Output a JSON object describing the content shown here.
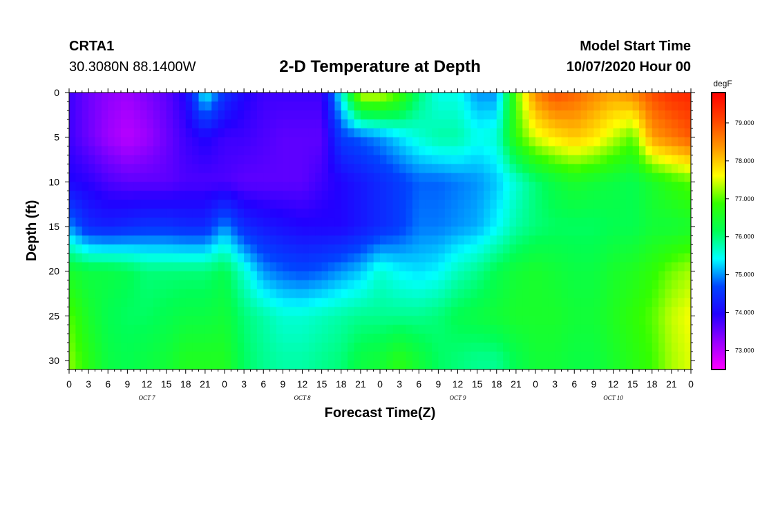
{
  "header": {
    "station": "CRTA1",
    "coords": "30.3080N 88.1400W",
    "title": "2-D Temperature at Depth",
    "start_label": "Model Start Time",
    "start_value": "10/07/2020 Hour 00"
  },
  "colors": {
    "palette": [
      "#ff00ff",
      "#9900ff",
      "#2200ff",
      "#0044ff",
      "#00ffff",
      "#00ff55",
      "#33ff00",
      "#ffff00",
      "#ff9900",
      "#ff4400",
      "#ff0000"
    ]
  },
  "chart_data": {
    "type": "heatmap",
    "title": "2-D Temperature at Depth",
    "xlabel": "Forecast Time(Z)",
    "ylabel": "Depth (ft)",
    "units": "degF",
    "xlim": [
      0,
      96
    ],
    "ylim": [
      31,
      0
    ],
    "x_ticks": [
      0,
      3,
      6,
      9,
      12,
      15,
      18,
      21,
      24,
      27,
      30,
      33,
      36,
      39,
      42,
      45,
      48,
      51,
      54,
      57,
      60,
      63,
      66,
      69,
      72,
      75,
      78,
      81,
      84,
      87,
      90,
      93,
      96
    ],
    "x_tick_labels": [
      "0",
      "3",
      "6",
      "9",
      "12",
      "15",
      "18",
      "21",
      "0",
      "3",
      "6",
      "9",
      "12",
      "15",
      "18",
      "21",
      "0",
      "3",
      "6",
      "9",
      "12",
      "15",
      "18",
      "21",
      "0",
      "3",
      "6",
      "9",
      "12",
      "15",
      "18",
      "21",
      "0"
    ],
    "day_labels": [
      {
        "x": 12,
        "label": "OCT 7"
      },
      {
        "x": 36,
        "label": "OCT 8"
      },
      {
        "x": 60,
        "label": "OCT 9"
      },
      {
        "x": 84,
        "label": "OCT 10"
      }
    ],
    "y_ticks": [
      0,
      5,
      10,
      15,
      20,
      25,
      30
    ],
    "y_tick_labels": [
      "0",
      "5",
      "10",
      "15",
      "20",
      "25",
      "30"
    ],
    "colorbar": {
      "label": "degF",
      "range": [
        72.5,
        79.8
      ],
      "ticks": [
        73.0,
        74.0,
        75.0,
        76.0,
        77.0,
        78.0,
        79.0
      ],
      "tick_labels": [
        "73.000",
        "74.000",
        "75.000",
        "76.000",
        "77.000",
        "78.000",
        "79.000"
      ]
    },
    "grid": false,
    "times": [
      0,
      3,
      6,
      9,
      12,
      15,
      18,
      21,
      24,
      27,
      30,
      33,
      36,
      39,
      42,
      45,
      48,
      51,
      54,
      57,
      60,
      63,
      66,
      69,
      72,
      75,
      78,
      81,
      84,
      87,
      90,
      93,
      96
    ],
    "depths": [
      0,
      5,
      10,
      15,
      20,
      25,
      30
    ],
    "values": [
      [
        73.8,
        73.5,
        73.3,
        73.2,
        73.4,
        73.6,
        74.0,
        75.5,
        74.5,
        74.0,
        73.8,
        73.8,
        73.8,
        73.8,
        75.5,
        77.5,
        77.5,
        77.0,
        76.0,
        75.5,
        75.5,
        75.0,
        75.0,
        77.0,
        78.5,
        79.0,
        78.8,
        78.5,
        78.3,
        78.5,
        79.0,
        79.3,
        79.4
      ],
      [
        73.8,
        73.5,
        73.2,
        73.0,
        73.2,
        73.5,
        73.8,
        74.0,
        73.8,
        73.8,
        73.7,
        73.6,
        73.6,
        73.6,
        74.6,
        74.8,
        75.0,
        75.3,
        75.6,
        75.8,
        75.8,
        75.5,
        75.6,
        76.8,
        77.5,
        77.8,
        78.0,
        77.8,
        77.4,
        77.0,
        78.3,
        78.6,
        78.9
      ],
      [
        74.0,
        73.9,
        73.7,
        73.6,
        73.6,
        73.6,
        73.7,
        73.7,
        73.7,
        73.6,
        73.6,
        73.6,
        73.6,
        73.8,
        74.0,
        74.2,
        74.4,
        74.6,
        74.8,
        74.8,
        74.9,
        75.0,
        75.2,
        75.6,
        76.0,
        76.3,
        76.5,
        76.4,
        76.3,
        76.2,
        76.5,
        76.8,
        77.0
      ],
      [
        75.0,
        74.4,
        74.3,
        74.4,
        74.5,
        74.5,
        74.4,
        74.4,
        75.0,
        74.4,
        74.2,
        74.1,
        74.0,
        74.0,
        74.0,
        74.2,
        74.4,
        74.6,
        74.9,
        74.9,
        75.0,
        75.1,
        75.4,
        75.8,
        76.0,
        76.1,
        76.1,
        76.1,
        76.2,
        76.2,
        76.4,
        76.4,
        76.5
      ],
      [
        76.5,
        76.3,
        76.3,
        76.2,
        76.0,
        76.0,
        76.0,
        76.0,
        76.2,
        75.6,
        75.0,
        74.8,
        74.7,
        74.8,
        75.0,
        75.2,
        75.6,
        75.4,
        75.3,
        75.4,
        75.7,
        75.9,
        76.2,
        76.4,
        76.5,
        76.4,
        76.3,
        76.3,
        76.5,
        76.6,
        76.8,
        77.1,
        77.3
      ],
      [
        77.0,
        76.5,
        76.2,
        76.1,
        76.1,
        76.2,
        76.3,
        76.3,
        76.4,
        76.0,
        75.8,
        75.6,
        75.6,
        75.7,
        75.8,
        75.9,
        75.9,
        75.9,
        75.9,
        76.0,
        76.2,
        76.3,
        76.4,
        76.5,
        76.5,
        76.5,
        76.4,
        76.4,
        76.6,
        76.8,
        77.0,
        77.4,
        77.6
      ],
      [
        77.2,
        76.7,
        76.3,
        76.2,
        76.3,
        76.4,
        76.6,
        76.6,
        76.6,
        76.1,
        75.9,
        75.8,
        75.8,
        75.9,
        76.0,
        76.3,
        76.4,
        76.7,
        76.4,
        76.1,
        76.0,
        75.9,
        75.9,
        76.2,
        76.4,
        76.4,
        76.3,
        76.3,
        76.5,
        76.7,
        76.9,
        77.3,
        77.5
      ]
    ]
  }
}
